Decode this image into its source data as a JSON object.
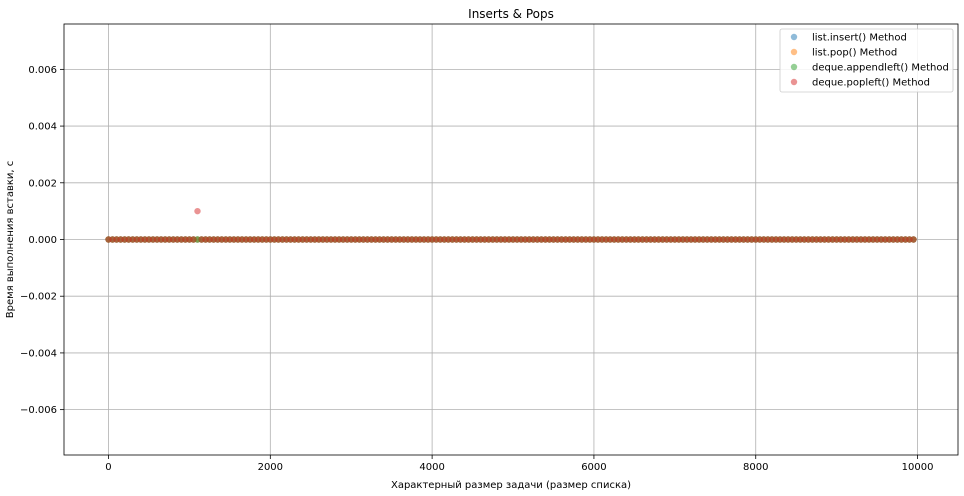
{
  "chart_data": {
    "type": "scatter",
    "title": "Inserts & Pops",
    "xlabel": "Характерный размер задачи (размер списка)",
    "ylabel": "Время выполнения вставки, с",
    "xlim": [
      -550,
      10500
    ],
    "ylim": [
      -0.0076,
      0.0076
    ],
    "x_ticks": [
      {
        "value": 0,
        "label": "0"
      },
      {
        "value": 2000,
        "label": "2000"
      },
      {
        "value": 4000,
        "label": "4000"
      },
      {
        "value": 6000,
        "label": "6000"
      },
      {
        "value": 8000,
        "label": "8000"
      },
      {
        "value": 10000,
        "label": "10000"
      }
    ],
    "y_ticks": [
      {
        "value": 0.006,
        "label": "0.006"
      },
      {
        "value": 0.004,
        "label": "0.004"
      },
      {
        "value": 0.002,
        "label": "0.002"
      },
      {
        "value": 0.0,
        "label": "0.000"
      },
      {
        "value": -0.002,
        "label": "−0.002"
      },
      {
        "value": -0.004,
        "label": "−0.004"
      },
      {
        "value": -0.006,
        "label": "−0.006"
      }
    ],
    "grid": true,
    "legend_position": "top-right",
    "sampling": {
      "x_start": 0,
      "x_stop": 10000,
      "x_step": 50
    },
    "series": [
      {
        "name": "list.insert() Method",
        "color": "#1f77b4",
        "outliers": []
      },
      {
        "name": "list.pop() Method",
        "color": "#ff7f0e",
        "outliers": []
      },
      {
        "name": "deque.appendleft() Method",
        "color": "#2ca02c",
        "outliers": []
      },
      {
        "name": "deque.popleft() Method",
        "color": "#d62728",
        "outliers": [
          {
            "x": 1100,
            "y": 0.001
          }
        ]
      }
    ]
  }
}
